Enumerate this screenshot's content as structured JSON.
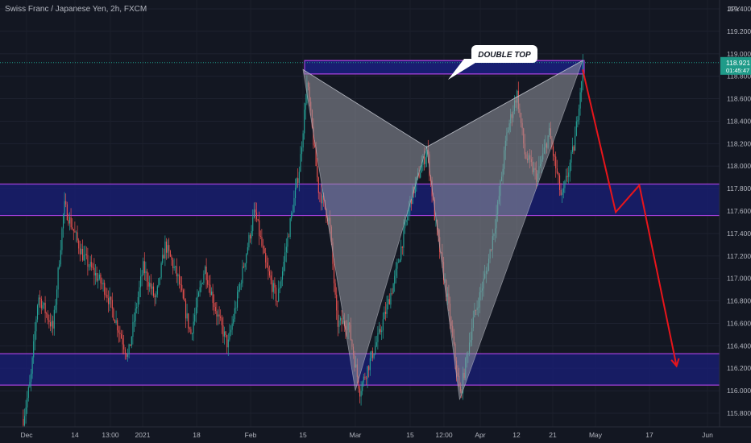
{
  "header": {
    "symbol_title": "Swiss Franc / Japanese Yen, 2h, FXCM"
  },
  "chart_data": {
    "type": "candlestick",
    "currency_label": "JPY",
    "y_ticks": [
      "115.800",
      "116.000",
      "116.200",
      "116.400",
      "116.600",
      "116.800",
      "117.000",
      "117.200",
      "117.400",
      "117.600",
      "117.800",
      "118.000",
      "118.200",
      "118.400",
      "118.600",
      "118.800",
      "119.000",
      "119.200",
      "119.400"
    ],
    "ylim": [
      115.7,
      119.65
    ],
    "x_ticks": [
      "Dec",
      "14",
      "13:00",
      "2021",
      "18",
      "Feb",
      "15",
      "Mar",
      "15",
      "12:00",
      "Apr",
      "12",
      "21",
      "May",
      "17",
      "Jun"
    ],
    "current_price": {
      "value": "118.921",
      "countdown": "01:45:47"
    },
    "annotation": "DOUBLE TOP",
    "zones": [
      {
        "low": 118.82,
        "high": 118.94
      },
      {
        "low": 117.56,
        "high": 117.84
      },
      {
        "low": 116.05,
        "high": 116.33
      }
    ],
    "pattern_points": [
      {
        "date": "2021-02-15",
        "price": 118.86
      },
      {
        "date": "2021-03-01",
        "price": 116.0
      },
      {
        "date": "2021-03-19",
        "price": 118.17
      },
      {
        "date": "2021-03-27",
        "price": 115.92
      },
      {
        "date": "2021-04-28",
        "price": 118.94
      }
    ],
    "projection": [
      {
        "date": "2021-04-28",
        "price": 118.86
      },
      {
        "date": "2021-05-07",
        "price": 117.59
      },
      {
        "date": "2021-05-14",
        "price": 117.83
      },
      {
        "date": "2021-05-24",
        "price": 116.22
      }
    ],
    "colors": {
      "background": "#131722",
      "up": "#26a69a",
      "down": "#ef5350",
      "zone_fill": "#1a1f7a",
      "zone_border": "#a23fd8",
      "pattern_fill": "#9598a1",
      "projection": "#e8151b",
      "text": "#b2b5be",
      "price_label": "#1f9b89"
    }
  }
}
